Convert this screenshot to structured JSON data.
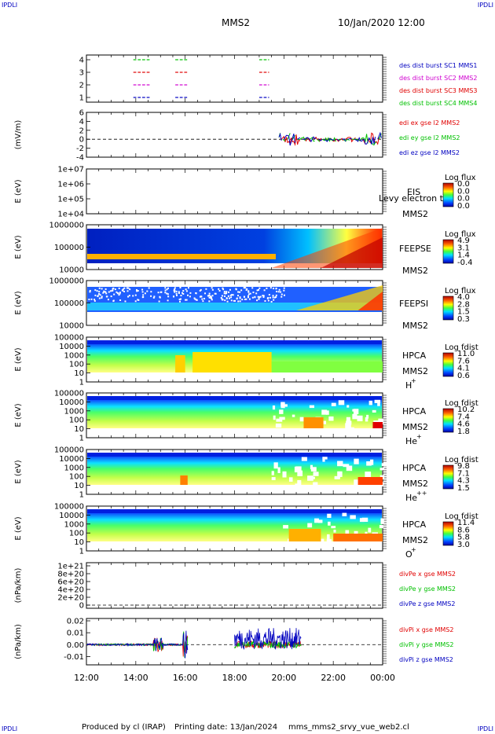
{
  "corner_label": "IPDLI",
  "header": {
    "spacecraft": "MMS2",
    "date_time": "10/Jan/2020 12:00"
  },
  "footer": {
    "producer": "Produced by cl (IRAP)",
    "printing_date": "Printing date: 13/Jan/2024",
    "filename": "mms_mms2_srvy_vue_web2.cl"
  },
  "time_axis": {
    "start": "12:00",
    "end": "00:00",
    "ticks": [
      "12:00",
      "14:00",
      "16:00",
      "18:00",
      "20:00",
      "22:00",
      "00:00"
    ]
  },
  "colors": {
    "red": "#e00000",
    "green": "#00c000",
    "blue": "#0000c0",
    "magenta": "#d000d0"
  },
  "panels": {
    "burst": {
      "yticks": [
        "4",
        "3",
        "2",
        "1"
      ],
      "legend": [
        {
          "text": "des dist burst SC1 MMS1",
          "color": "#0000c0"
        },
        {
          "text": "des dist burst SC2 MMS2",
          "color": "#d000d0"
        },
        {
          "text": "des dist burst SC3 MMS3",
          "color": "#e00000"
        },
        {
          "text": "des dist burst SC4 MMS4",
          "color": "#00c000"
        }
      ]
    },
    "edi": {
      "ylabel": "(mV/m)",
      "yticks": [
        "6",
        "4",
        "2",
        "0",
        "-2",
        "-4"
      ],
      "legend": [
        {
          "text": "edi ex gse l2 MMS2",
          "color": "#e00000"
        },
        {
          "text": "edi ey gse l2 MMS2",
          "color": "#00c000"
        },
        {
          "text": "edi ez gse l2 MMS2",
          "color": "#0000c0"
        }
      ]
    },
    "eis": {
      "ylabel": "E (eV)",
      "yticks": [
        "1e+07",
        "1e+06",
        "1e+05",
        "1e+04"
      ],
      "side": [
        "EIS",
        "MMS2"
      ],
      "overlay": "Levy electron to",
      "cbar_title": "Log flux",
      "cbar_ticks": [
        "0.0",
        "0.0",
        "0.0",
        "0.0"
      ]
    },
    "feepse": {
      "ylabel": "E (eV)",
      "yticks": [
        "1000000",
        "100000",
        "10000"
      ],
      "side": [
        "FEEPSE",
        "MMS2"
      ],
      "cbar_title": "Log flux",
      "cbar_ticks": [
        "4.9",
        "3.1",
        "1.4",
        "-0.4"
      ]
    },
    "feepsi": {
      "ylabel": "E (eV)",
      "yticks": [
        "1000000",
        "100000",
        "10000"
      ],
      "side": [
        "FEEPSI",
        "MMS2"
      ],
      "cbar_title": "Log flux",
      "cbar_ticks": [
        "4.0",
        "2.8",
        "1.5",
        "0.3"
      ]
    },
    "hpca_h": {
      "ylabel": "E (eV)",
      "yticks": [
        "100000",
        "10000",
        "1000",
        "100",
        "10",
        "1"
      ],
      "side": [
        "HPCA",
        "MMS2",
        "H",
        "+"
      ],
      "cbar_title": "Log fdist",
      "cbar_ticks": [
        "11.0",
        "7.6",
        "4.1",
        "0.6"
      ]
    },
    "hpca_he": {
      "ylabel": "E (eV)",
      "yticks": [
        "100000",
        "10000",
        "1000",
        "100",
        "10",
        "1"
      ],
      "side": [
        "HPCA",
        "MMS2",
        "He",
        "+"
      ],
      "cbar_title": "Log fdist",
      "cbar_ticks": [
        "10.2",
        "7.4",
        "4.6",
        "1.8"
      ]
    },
    "hpca_hepp": {
      "ylabel": "E (eV)",
      "yticks": [
        "100000",
        "10000",
        "1000",
        "100",
        "10",
        "1"
      ],
      "side": [
        "HPCA",
        "MMS2",
        "He",
        "++"
      ],
      "cbar_title": "Log fdist",
      "cbar_ticks": [
        "9.8",
        "7.1",
        "4.3",
        "1.5"
      ]
    },
    "hpca_o": {
      "ylabel": "E (eV)",
      "yticks": [
        "100000",
        "10000",
        "1000",
        "100",
        "10",
        "1"
      ],
      "side": [
        "HPCA",
        "MMS2",
        "O",
        "+"
      ],
      "cbar_title": "Log fdist",
      "cbar_ticks": [
        "11.4",
        "8.6",
        "5.8",
        "3.0"
      ]
    },
    "divpe": {
      "ylabel": "(nPa/km)",
      "yticks": [
        "1e+21",
        "8e+20",
        "6e+20",
        "4e+20",
        "2e+20",
        "0"
      ],
      "legend": [
        {
          "text": "divPe x gse MMS2",
          "color": "#e00000"
        },
        {
          "text": "divPe y gse MMS2",
          "color": "#00c000"
        },
        {
          "text": "divPe z gse MMS2",
          "color": "#0000c0"
        }
      ]
    },
    "divpi": {
      "ylabel": "(nPa/km)",
      "yticks": [
        "0.02",
        "0.01",
        "0.00",
        "-0.01"
      ],
      "legend": [
        {
          "text": "divPi x gse MMS2",
          "color": "#e00000"
        },
        {
          "text": "divPi y gse MMS2",
          "color": "#00c000"
        },
        {
          "text": "divPi z gse MMS2",
          "color": "#0000c0"
        }
      ]
    }
  },
  "chart_data": {
    "type": "line",
    "title": "MMS2",
    "x": [
      "12:00",
      "14:00",
      "16:00",
      "18:00",
      "20:00",
      "22:00",
      "00:00"
    ],
    "burst_intervals": [
      {
        "name": "des dist burst SC1 MMS1",
        "level": 1,
        "intervals_hours": [
          [
            13.9,
            14.6
          ],
          [
            15.6,
            16.1
          ],
          [
            19.0,
            19.4
          ]
        ]
      },
      {
        "name": "des dist burst SC2 MMS2",
        "level": 2,
        "intervals_hours": [
          [
            13.9,
            14.6
          ],
          [
            15.6,
            16.1
          ],
          [
            19.0,
            19.4
          ]
        ]
      },
      {
        "name": "des dist burst SC3 MMS3",
        "level": 3,
        "intervals_hours": [
          [
            13.9,
            14.6
          ],
          [
            15.6,
            16.1
          ],
          [
            19.0,
            19.4
          ]
        ]
      },
      {
        "name": "des dist burst SC4 MMS4",
        "level": 4,
        "intervals_hours": [
          [
            13.9,
            14.6
          ],
          [
            15.6,
            16.1
          ],
          [
            19.0,
            19.4
          ]
        ]
      }
    ],
    "divPi_series": [
      {
        "name": "divPi x gse MMS2",
        "x": [
          12,
          14,
          14.8,
          15.0,
          16.0,
          18.0,
          19.5,
          20.5
        ],
        "y": [
          0.0,
          0.0,
          -0.003,
          0.0,
          -0.005,
          -0.001,
          -0.002,
          -0.001
        ]
      },
      {
        "name": "divPi y gse MMS2",
        "x": [
          12,
          14,
          14.8,
          15.0,
          16.0,
          18.0,
          19.5,
          20.5
        ],
        "y": [
          0.0,
          0.0,
          0.002,
          0.0,
          -0.008,
          0.0,
          0.002,
          0.001
        ]
      },
      {
        "name": "divPi z gse MMS2",
        "x": [
          12,
          14,
          14.8,
          15.0,
          16.0,
          18.0,
          19.5,
          20.5
        ],
        "y": [
          0.0,
          0.0,
          0.005,
          0.001,
          0.012,
          0.01,
          0.008,
          0.004
        ]
      }
    ]
  }
}
